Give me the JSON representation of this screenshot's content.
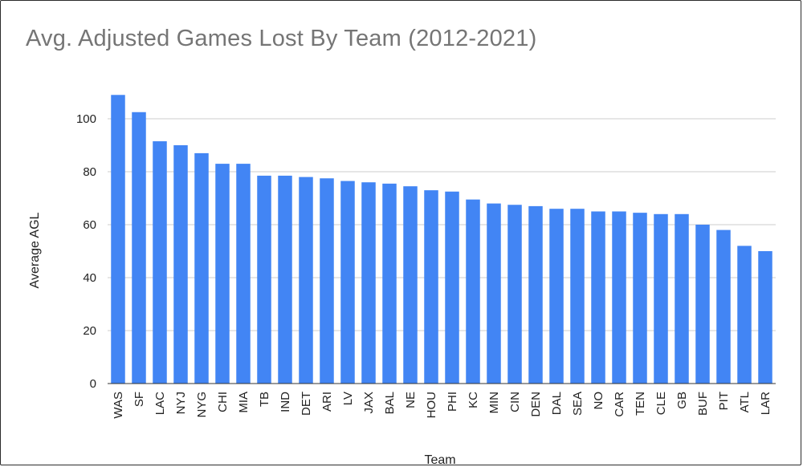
{
  "chart_data": {
    "type": "bar",
    "title": "Avg. Adjusted Games Lost By Team (2012-2021)",
    "xlabel": "Team",
    "ylabel": "Average AGL",
    "ylim": [
      0,
      110
    ],
    "yticks": [
      0,
      20,
      40,
      60,
      80,
      100
    ],
    "grid": true,
    "legend": "none",
    "categories": [
      "WAS",
      "SF",
      "LAC",
      "NYJ",
      "NYG",
      "CHI",
      "MIA",
      "TB",
      "IND",
      "DET",
      "ARI",
      "LV",
      "JAX",
      "BAL",
      "NE",
      "HOU",
      "PHI",
      "KC",
      "MIN",
      "CIN",
      "DEN",
      "DAL",
      "SEA",
      "NO",
      "CAR",
      "TEN",
      "CLE",
      "GB",
      "BUF",
      "PIT",
      "ATL",
      "LAR"
    ],
    "values": [
      109,
      102.5,
      91.5,
      90,
      87,
      83,
      83,
      78.5,
      78.5,
      78,
      77.5,
      76.5,
      76,
      75.5,
      74.5,
      73,
      72.5,
      69.5,
      68,
      67.5,
      67,
      66,
      66,
      65,
      65,
      64.5,
      64,
      64,
      60,
      58,
      52,
      50
    ],
    "bar_color": "#4285f4"
  }
}
